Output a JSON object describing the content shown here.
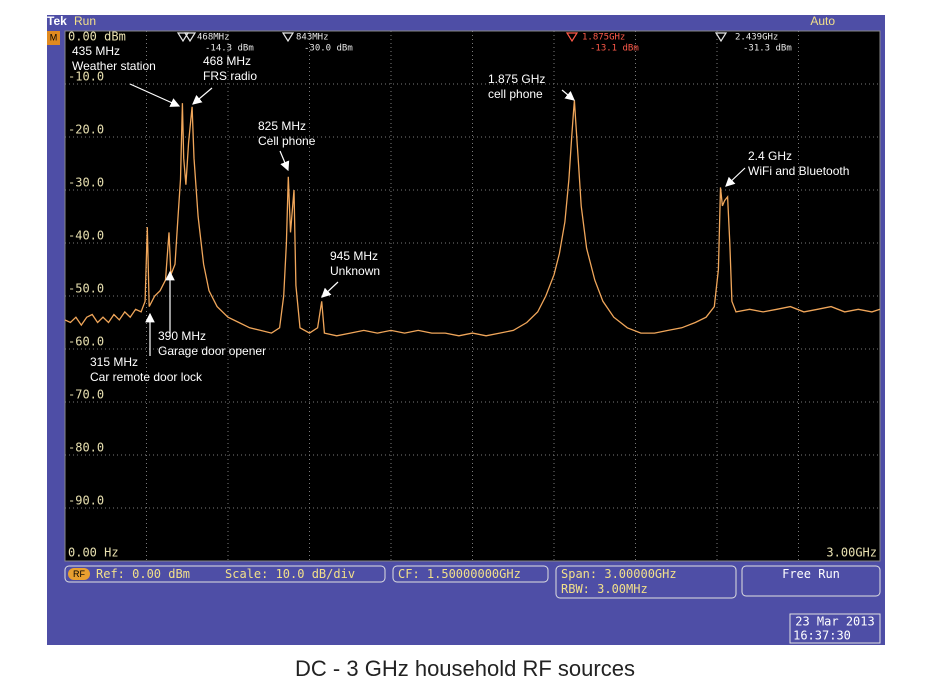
{
  "chart_data": {
    "type": "line",
    "x": [
      0,
      0.02,
      0.04,
      0.06,
      0.08,
      0.1,
      0.12,
      0.14,
      0.16,
      0.18,
      0.2,
      0.22,
      0.24,
      0.26,
      0.28,
      0.295,
      0.303,
      0.31,
      0.33,
      0.35,
      0.37,
      0.383,
      0.39,
      0.405,
      0.415,
      0.425,
      0.432,
      0.437,
      0.445,
      0.455,
      0.468,
      0.475,
      0.49,
      0.51,
      0.53,
      0.56,
      0.6,
      0.64,
      0.68,
      0.72,
      0.76,
      0.79,
      0.805,
      0.815,
      0.822,
      0.83,
      0.843,
      0.85,
      0.865,
      0.9,
      0.93,
      0.945,
      0.955,
      1.0,
      1.05,
      1.1,
      1.15,
      1.2,
      1.25,
      1.3,
      1.35,
      1.4,
      1.45,
      1.5,
      1.55,
      1.6,
      1.65,
      1.7,
      1.74,
      1.77,
      1.8,
      1.82,
      1.84,
      1.855,
      1.865,
      1.872,
      1.875,
      1.88,
      1.89,
      1.9,
      1.92,
      1.95,
      1.98,
      2.02,
      2.07,
      2.12,
      2.17,
      2.22,
      2.27,
      2.32,
      2.36,
      2.39,
      2.405,
      2.413,
      2.42,
      2.428,
      2.439,
      2.447,
      2.455,
      2.47,
      2.52,
      2.57,
      2.62,
      2.67,
      2.72,
      2.77,
      2.82,
      2.87,
      2.92,
      2.97,
      3.0
    ],
    "values": [
      -54.5,
      -55,
      -54,
      -55.5,
      -54,
      -53.5,
      -55,
      -54,
      -55,
      -53.5,
      -54.5,
      -53,
      -54,
      -52.5,
      -53,
      -51,
      -37,
      -52,
      -50,
      -49,
      -47,
      -38,
      -46,
      -44,
      -36,
      -28,
      -13.6,
      -24,
      -29,
      -21,
      -14.3,
      -24,
      -35,
      -44,
      -49,
      -52,
      -54,
      -55,
      -56,
      -56.5,
      -57,
      -56,
      -50,
      -40,
      -27.5,
      -38,
      -30,
      -48,
      -56,
      -57,
      -56,
      -51,
      -57,
      -57.5,
      -57,
      -56.5,
      -57,
      -56.5,
      -57,
      -56.5,
      -57,
      -57,
      -57.5,
      -57,
      -57.5,
      -57,
      -56.5,
      -55,
      -53,
      -50,
      -46,
      -42,
      -36,
      -28,
      -20,
      -15,
      -13.1,
      -17,
      -25,
      -33,
      -41,
      -47,
      -51,
      -54,
      -56,
      -57,
      -57,
      -56.5,
      -56,
      -55,
      -54,
      -52,
      -45,
      -29.5,
      -33,
      -32,
      -31.3,
      -40,
      -51,
      -53,
      -52.5,
      -53,
      -52.5,
      -52,
      -53,
      -52.5,
      -52,
      -53,
      -52.5,
      -53,
      -52.5
    ],
    "color": "#f0a65a",
    "xlim": [
      0,
      3
    ],
    "ylim": [
      -100,
      0
    ],
    "xticks": [
      {
        "value": 0,
        "label": "0.00 Hz"
      },
      {
        "value": 0.3,
        "label": null
      },
      {
        "value": 0.6,
        "label": null
      },
      {
        "value": 0.9,
        "label": null
      },
      {
        "value": 1.2,
        "label": null
      },
      {
        "value": 1.5,
        "label": null
      },
      {
        "value": 1.8,
        "label": null
      },
      {
        "value": 2.1,
        "label": null
      },
      {
        "value": 2.4,
        "label": null
      },
      {
        "value": 2.7,
        "label": null
      },
      {
        "value": 3,
        "label": "3.00GHz"
      }
    ],
    "yticks": [
      {
        "value": 0,
        "label": "0.00 dBm"
      },
      {
        "value": -10,
        "label": "-10.0"
      },
      {
        "value": -20,
        "label": "-20.0"
      },
      {
        "value": -30,
        "label": "-30.0"
      },
      {
        "value": -40,
        "label": "-40.0"
      },
      {
        "value": -50,
        "label": "-50.0"
      },
      {
        "value": -60,
        "label": "-60.0"
      },
      {
        "value": -70,
        "label": "-70.0"
      },
      {
        "value": -80,
        "label": "-80.0"
      },
      {
        "value": -90,
        "label": "-90.0"
      }
    ],
    "grid": true,
    "markers": [
      [
        "468MHz",
        "-14.3 dBm"
      ],
      [
        "843MHz",
        "-30.0 dBm"
      ],
      [
        "1.875GHz",
        "-13.1 dBm"
      ],
      [
        "2.439GHz",
        "-31.3 dBm"
      ]
    ],
    "annotations": [
      [
        "435 MHz",
        "Weather station"
      ],
      [
        "468 MHz",
        "FRS radio"
      ],
      [
        "825 MHz",
        "Cell phone"
      ],
      [
        "945 MHz",
        "Unknown"
      ],
      [
        "1.875 GHz",
        "cell phone"
      ],
      [
        "2.4 GHz",
        "WiFi and Bluetooth"
      ],
      [
        "390 MHz",
        "Garage door opener"
      ],
      [
        "315 MHz",
        "Car remote door lock"
      ]
    ],
    "caption": "DC - 3 GHz household RF sources"
  },
  "ui": {
    "brand": "Tek",
    "state": "Run",
    "trigger": "Auto",
    "badge": "M",
    "rf_badge": "RF",
    "ref": "Ref: 0.00 dBm",
    "scale": "Scale: 10.0 dB/div",
    "cf": "CF: 1.50000000GHz",
    "span": "Span: 3.00000GHz",
    "rbw": "RBW: 3.00MHz",
    "mode": "Free Run",
    "date": "23 Mar 2013",
    "time": "16:37:30"
  }
}
